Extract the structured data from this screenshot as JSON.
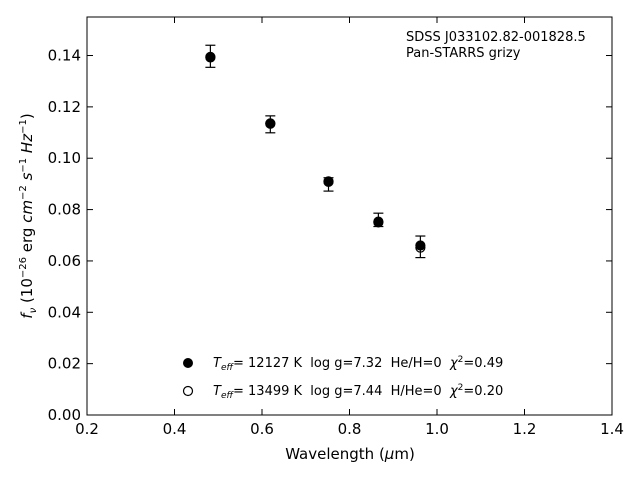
{
  "chart_data": {
    "type": "scatter",
    "annotations": [
      "SDSS J033102.82-001828.5",
      "Pan-STARRS grizy"
    ],
    "xlabel": "Wavelength (μm)",
    "ylabel": "f_ν (10^−26 erg cm^−2 s^−1 Hz^−1)",
    "xlim": [
      0.2,
      1.4
    ],
    "ylim": [
      0.0,
      0.155
    ],
    "xticks": [
      "0.2",
      "0.4",
      "0.6",
      "0.8",
      "1.0",
      "1.2",
      "1.4"
    ],
    "yticks": [
      "0.00",
      "0.02",
      "0.04",
      "0.06",
      "0.08",
      "0.10",
      "0.12",
      "0.14"
    ],
    "grid": false,
    "legend_position": "lower-center",
    "series": [
      {
        "name": "T_eff= 12127 K  log g=7.32  He/H=0  χ²=0.49",
        "marker": "filled-circle",
        "x": [
          0.482,
          0.619,
          0.752,
          0.866,
          0.962
        ],
        "y": [
          0.1395,
          0.1134,
          0.091,
          0.0753,
          0.066
        ]
      },
      {
        "name": "T_eff= 13499 K  log g=7.44  H/He=0  χ²=0.20",
        "marker": "open-circle",
        "x": [
          0.482,
          0.619,
          0.752,
          0.866,
          0.962
        ],
        "y": [
          0.1392,
          0.1136,
          0.0908,
          0.075,
          0.0652
        ]
      }
    ],
    "observed": {
      "x": [
        0.482,
        0.619,
        0.752,
        0.866,
        0.962
      ],
      "y": [
        0.1397,
        0.1132,
        0.0898,
        0.076,
        0.0655
      ],
      "yerr": [
        0.0043,
        0.0033,
        0.0026,
        0.0026,
        0.0042
      ]
    },
    "legend": [
      {
        "prefix": "T",
        "sub": "eff",
        "mid": "= 12127 K  log g=7.32  He/H=0  ",
        "chi": "χ",
        "sup": "2",
        "tail": "=0.49"
      },
      {
        "prefix": "T",
        "sub": "eff",
        "mid": "= 13499 K  log g=7.44  H/He=0  ",
        "chi": "χ",
        "sup": "2",
        "tail": "=0.20"
      }
    ]
  }
}
